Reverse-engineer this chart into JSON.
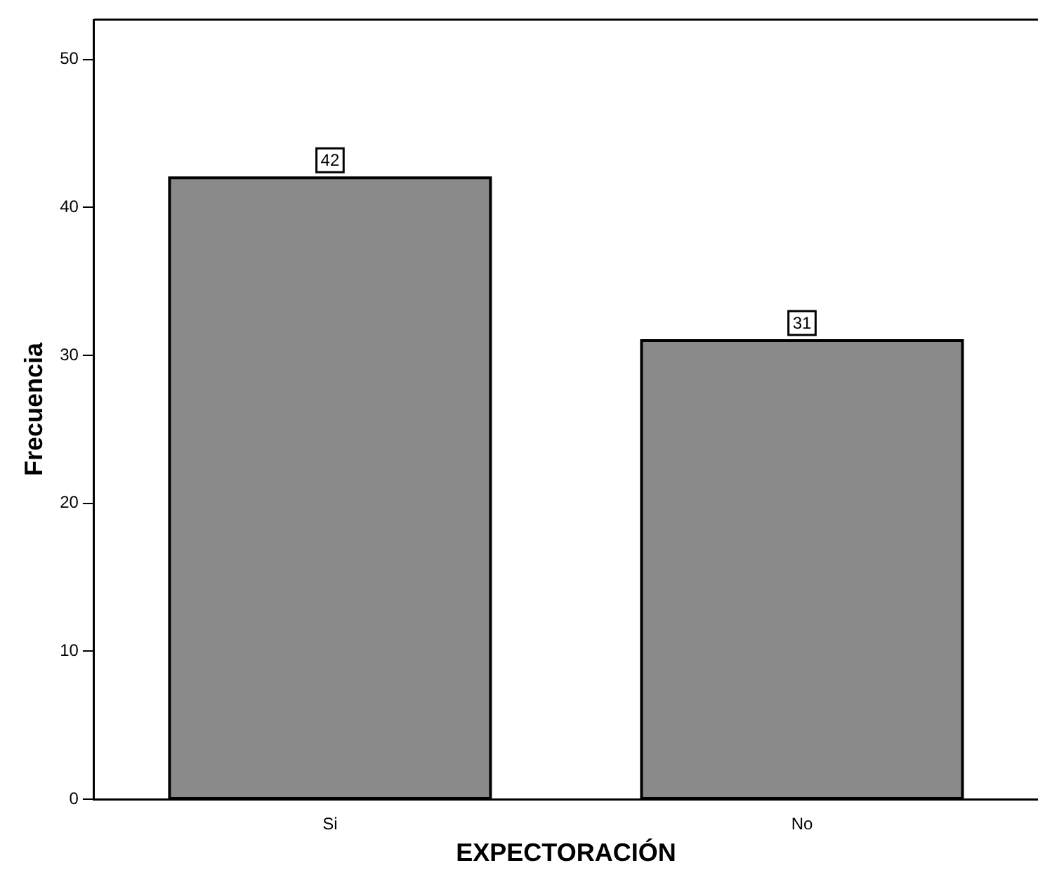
{
  "chart_data": {
    "type": "bar",
    "xlabel": "EXPECTORACIÓN",
    "ylabel": "Frecuencia",
    "categories": [
      "Si",
      "No"
    ],
    "values": [
      42,
      31
    ],
    "color": "#8a8a8a",
    "ylim": [
      0,
      52.7
    ],
    "yticks": [
      0,
      10,
      20,
      30,
      40,
      50
    ],
    "grid": false,
    "legend": false,
    "data_labels": true
  }
}
